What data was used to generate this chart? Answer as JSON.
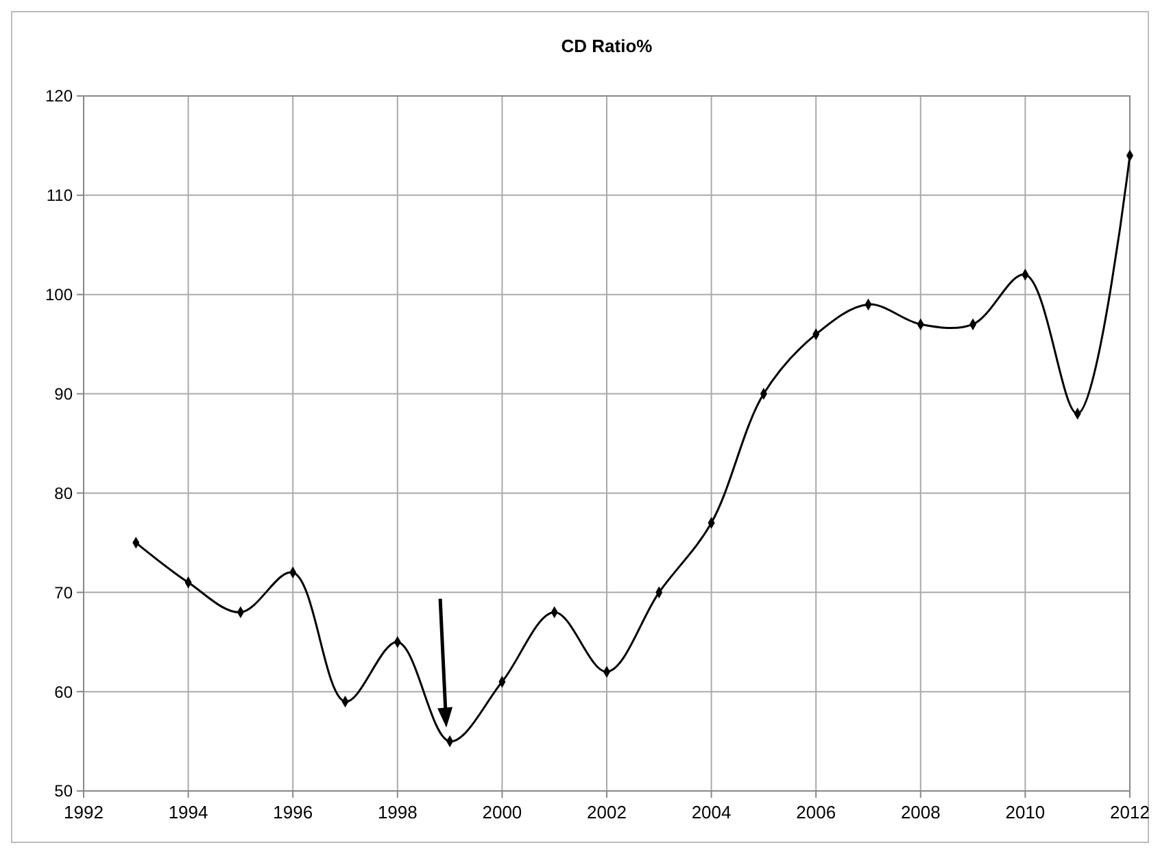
{
  "chart_data": {
    "type": "line",
    "title": "CD Ratio%",
    "x": [
      1993,
      1994,
      1995,
      1996,
      1997,
      1998,
      1999,
      2000,
      2001,
      2002,
      2003,
      2004,
      2005,
      2006,
      2007,
      2008,
      2009,
      2010,
      2011,
      2012
    ],
    "series": [
      {
        "color": "#000000",
        "values": [
          75,
          71,
          68,
          72,
          59,
          65,
          55,
          61,
          68,
          62,
          70,
          77,
          90,
          96,
          99,
          97,
          97,
          102,
          88,
          114
        ]
      }
    ],
    "xlim": [
      1992,
      2012
    ],
    "xticks": [
      1992,
      1994,
      1996,
      1998,
      2000,
      2002,
      2004,
      2006,
      2008,
      2010,
      2012
    ],
    "ylim": [
      50,
      120
    ],
    "yticks": [
      50,
      60,
      70,
      80,
      90,
      100,
      110,
      120
    ],
    "grid": true,
    "marker": "diamond",
    "line_style": "solid"
  }
}
